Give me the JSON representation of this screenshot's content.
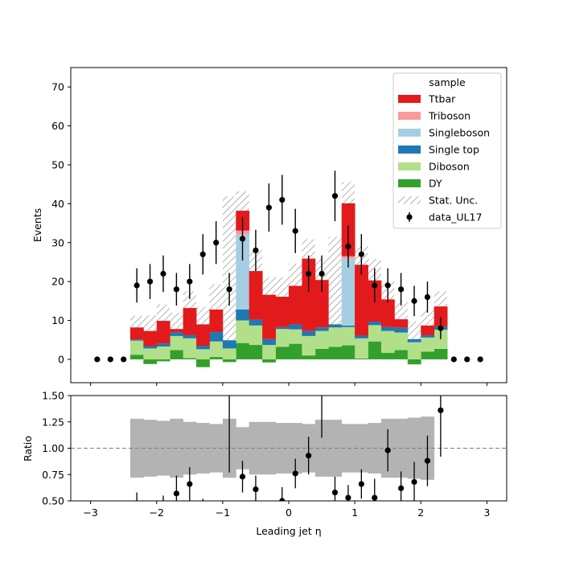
{
  "chart_data": [
    {
      "type": "bar",
      "stacked": true,
      "xlabel": "Leading jet η",
      "ylabel": "Events",
      "xlim": [
        -3.3,
        3.3
      ],
      "ylim": [
        -6,
        75
      ],
      "x_ticks": [
        -3,
        -2,
        -1,
        0,
        1,
        2,
        3
      ],
      "x_tick_labels": [
        "−3",
        "−2",
        "−1",
        "0",
        "1",
        "2",
        "3"
      ],
      "y_ticks": [
        0,
        10,
        20,
        30,
        40,
        50,
        60,
        70
      ],
      "y_tick_labels": [
        "0",
        "10",
        "20",
        "30",
        "40",
        "50",
        "60",
        "70"
      ],
      "bin_edges": [
        -2.4,
        -2.2,
        -2.0,
        -1.8,
        -1.6,
        -1.4,
        -1.2,
        -1.0,
        -0.8,
        -0.6,
        -0.4,
        -0.2,
        0.0,
        0.2,
        0.4,
        0.6,
        0.8,
        1.0,
        1.2,
        1.4,
        1.6,
        1.8,
        2.0,
        2.2,
        2.4
      ],
      "legend_title": "sample",
      "legend_position": "upper right",
      "colors": {
        "Ttbar": "#e31a1c",
        "Triboson": "#fb9a99",
        "Singleboson": "#a6cee3",
        "Single top": "#1f78b4",
        "Diboson": "#b2df8a",
        "DY": "#33a02c",
        "Stat. Unc.": "#888888",
        "data_UL17": "#000000"
      },
      "series": [
        {
          "name": "DY",
          "values": [
            1.2,
            -1.2,
            -0.5,
            2.4,
            0.3,
            -2.0,
            0.6,
            -0.7,
            4.2,
            3.7,
            -0.8,
            3.2,
            4.0,
            1.0,
            2.7,
            3.2,
            3.6,
            0.2,
            4.6,
            1.7,
            2.4,
            -1.3,
            2.0,
            2.7,
            -0.2
          ]
        },
        {
          "name": "Diboson",
          "values": [
            3.6,
            2.8,
            3.3,
            3.6,
            5.1,
            2.6,
            4.0,
            2.8,
            5.8,
            5.0,
            3.7,
            4.6,
            3.7,
            5.0,
            4.6,
            5.0,
            4.7,
            5.2,
            4.2,
            5.6,
            4.5,
            4.4,
            3.6,
            4.9,
            4.5
          ]
        },
        {
          "name": "Single top",
          "values": [
            0.3,
            0.6,
            0.8,
            1.0,
            0.8,
            0.9,
            2.4,
            2.1,
            2.8,
            1.5,
            1.5,
            0.5,
            1.3,
            1.3,
            0.9,
            0.8,
            0.4,
            0.7,
            0.9,
            1.0,
            1.2,
            0.8,
            0.6,
            0.8,
            0.5
          ]
        },
        {
          "name": "Singleboson",
          "values": [
            0,
            0,
            0,
            0,
            0,
            0,
            0,
            0,
            19.3,
            0,
            0,
            0,
            0,
            0,
            0,
            0,
            17.2,
            0,
            0,
            0,
            0,
            0,
            0,
            0,
            0
          ]
        },
        {
          "name": "Triboson",
          "values": [
            0,
            0,
            0,
            0,
            0,
            0,
            0,
            0,
            1.0,
            0,
            0,
            0,
            0,
            0,
            0,
            0,
            0.6,
            0,
            0,
            0,
            0,
            0,
            0,
            0,
            0
          ]
        },
        {
          "name": "Ttbar",
          "values": [
            3.1,
            3.9,
            5.8,
            0.8,
            7.0,
            5.5,
            5.8,
            0,
            5.1,
            12.5,
            11.4,
            7.8,
            9.9,
            18.6,
            12.2,
            0,
            13.6,
            18.2,
            10.6,
            7.1,
            2.2,
            0,
            2.5,
            5.2,
            5.4
          ]
        },
        {
          "name": "Stat. Unc.",
          "values": [
            3.0,
            4.0,
            4.2,
            4.2,
            4.3,
            4.5,
            6.5,
            37.0,
            5.0,
            5.5,
            4.5,
            5.0,
            5.7,
            5.0,
            5.5,
            22.5,
            5.5,
            4.7,
            5.5,
            4.7,
            4.7,
            4.6,
            4.0,
            3.9,
            0
          ]
        },
        {
          "name": "data_UL17",
          "x": [
            -2.9,
            -2.7,
            -2.5,
            -2.3,
            -2.1,
            -1.9,
            -1.7,
            -1.5,
            -1.3,
            -1.1,
            -0.9,
            -0.7,
            -0.5,
            -0.3,
            -0.1,
            0.1,
            0.3,
            0.5,
            0.7,
            0.9,
            1.1,
            1.3,
            1.5,
            1.7,
            1.9,
            2.1,
            2.3,
            2.5,
            2.7,
            2.9
          ],
          "values": [
            0,
            0,
            0,
            19,
            20,
            22,
            18,
            20,
            27,
            30,
            18,
            31,
            28,
            39,
            41,
            33,
            22,
            22,
            42,
            29,
            27,
            19,
            19,
            18,
            15,
            16,
            8,
            0,
            0,
            0
          ],
          "errors": [
            0,
            0,
            0,
            4.4,
            4.5,
            4.7,
            4.2,
            4.5,
            5.2,
            5.5,
            4.2,
            5.6,
            5.3,
            6.2,
            6.4,
            5.7,
            4.7,
            4.7,
            6.5,
            5.4,
            5.2,
            4.4,
            4.4,
            4.2,
            3.9,
            4.0,
            2.8,
            0,
            0,
            0
          ]
        }
      ]
    },
    {
      "type": "scatter",
      "xlabel": "Leading jet  η",
      "ylabel": "Ratio",
      "xlim": [
        -3.3,
        3.3
      ],
      "ylim": [
        0.5,
        1.5
      ],
      "reference_line": 1.0,
      "x_ticks": [
        -3,
        -2,
        -1,
        0,
        1,
        2,
        3
      ],
      "x_tick_labels": [
        "−3",
        "−2",
        "−1",
        "0",
        "1",
        "2",
        "3"
      ],
      "y_ticks": [
        0.5,
        0.75,
        1.0,
        1.25,
        1.5
      ],
      "y_tick_labels": [
        "0.50",
        "0.75",
        "1.00",
        "1.25",
        "1.50"
      ],
      "uncertainty_band": {
        "bin_edges": [
          -2.4,
          -2.2,
          -2.0,
          -1.8,
          -1.6,
          -1.4,
          -1.2,
          -1.0,
          -0.8,
          -0.6,
          -0.4,
          -0.2,
          0.0,
          0.2,
          0.4,
          0.6,
          0.8,
          1.0,
          1.2,
          1.4,
          1.6,
          1.8,
          2.0,
          2.2
        ],
        "low": [
          0.72,
          0.73,
          0.74,
          0.72,
          0.75,
          0.76,
          0.77,
          0.72,
          0.8,
          0.75,
          0.75,
          0.76,
          0.76,
          0.77,
          0.73,
          0.73,
          0.77,
          0.77,
          0.76,
          0.72,
          0.72,
          0.71,
          0.7,
          0.71
        ],
        "high": [
          1.28,
          1.27,
          1.26,
          1.28,
          1.25,
          1.24,
          1.23,
          1.28,
          1.2,
          1.25,
          1.25,
          1.24,
          1.24,
          1.23,
          1.27,
          1.27,
          1.23,
          1.23,
          1.24,
          1.28,
          1.28,
          1.29,
          1.3,
          1.29
        ]
      },
      "series": [
        {
          "name": "ratio",
          "x": [
            -1.7,
            -1.5,
            -0.7,
            -0.5,
            -0.1,
            0.1,
            0.3,
            0.7,
            0.9,
            1.1,
            1.3,
            1.5,
            1.7,
            1.9,
            2.1,
            2.3
          ],
          "values": [
            0.57,
            0.66,
            0.73,
            0.61,
            0.5,
            0.76,
            0.93,
            0.58,
            0.53,
            0.66,
            0.53,
            0.98,
            0.62,
            0.68,
            0.88,
            1.36
          ],
          "errors": [
            0.17,
            0.16,
            0.15,
            0.13,
            0.13,
            0.14,
            0.18,
            0.15,
            0.12,
            0.14,
            0.18,
            0.2,
            0.16,
            0.19,
            0.24,
            0.44
          ]
        },
        {
          "name": "ratio_offscale_bars",
          "x": [
            -2.3,
            -1.9,
            -1.3,
            -0.9,
            0.5
          ],
          "low": [
            0.43,
            0.34,
            0.39,
            0.77,
            1.1
          ],
          "high": [
            0.58,
            0.55,
            0.52,
            1.6,
            1.65
          ]
        }
      ]
    }
  ]
}
